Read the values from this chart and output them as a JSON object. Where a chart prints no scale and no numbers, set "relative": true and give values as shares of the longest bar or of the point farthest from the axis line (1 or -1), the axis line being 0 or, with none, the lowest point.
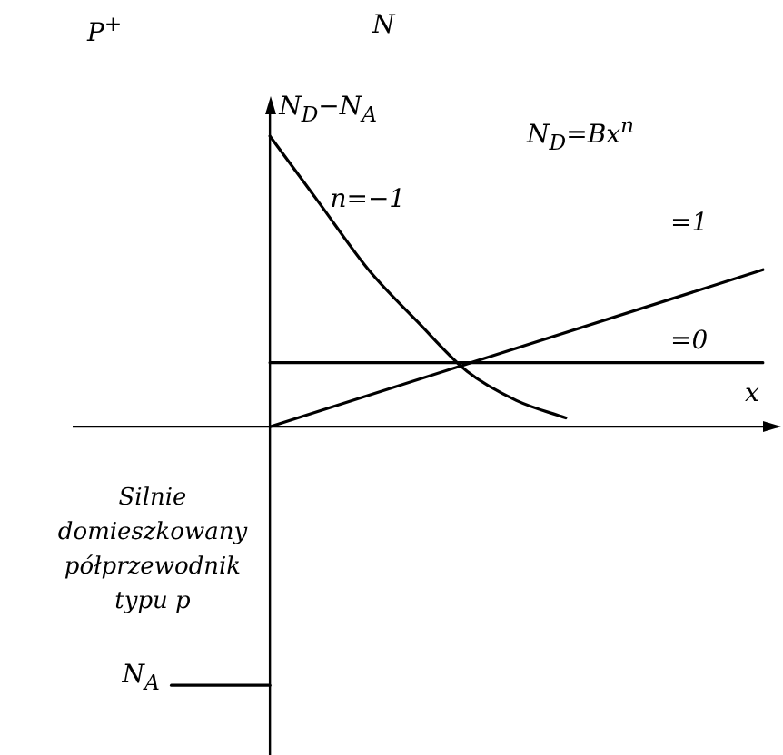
{
  "chart_data": {
    "type": "line",
    "relative": true,
    "title": "P$^{+}$",
    "subtitle": "N",
    "ylabel": "N$_{D}$−N$_{A}$",
    "xlabel": "x",
    "legend": false,
    "marker": "none",
    "line_style": "solid",
    "annotations": [
      "N$_{D}$=Bx$^{n}$",
      "Silnie domieszkowany półprzewodnik typu p"
    ],
    "categories": [
      null,
      null,
      null,
      null,
      null,
      null,
      null,
      null,
      null,
      null,
      null,
      null,
      null,
      null,
      null
    ],
    "series": [
      {
        "name": "n=−1",
        "color": "#000000",
        "values": [
          null,
          null,
          null,
          null,
          1,
          0.77,
          0.54,
          0.36,
          0.19,
          0.09,
          0.03,
          null,
          null,
          null,
          null
        ]
      },
      {
        "name": "=1",
        "color": "#000000",
        "values": [
          null,
          null,
          null,
          null,
          0,
          null,
          null,
          null,
          null,
          null,
          null,
          null,
          null,
          null,
          0.54
        ]
      },
      {
        "name": "=0",
        "color": "#000000",
        "values": [
          null,
          null,
          null,
          null,
          0.22,
          null,
          null,
          null,
          null,
          null,
          null,
          null,
          null,
          null,
          0.22
        ]
      },
      {
        "name": "N$_{A}$",
        "color": "#000000",
        "values": [
          null,
          null,
          -0.89,
          null,
          -0.89,
          null,
          null,
          null,
          null,
          null,
          null,
          null,
          null,
          null,
          null
        ]
      }
    ]
  }
}
